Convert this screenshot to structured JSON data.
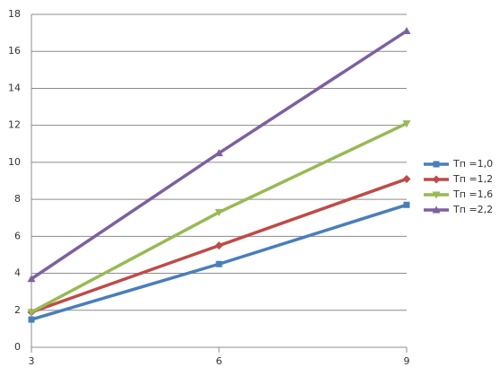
{
  "chart_data": {
    "type": "line",
    "x": [
      3,
      6,
      9
    ],
    "xlim": [
      3,
      9
    ],
    "xticks": [
      3,
      6,
      9
    ],
    "ylim": [
      0,
      18
    ],
    "yticks": [
      0,
      2,
      4,
      6,
      8,
      10,
      12,
      14,
      16,
      18
    ],
    "grid": true,
    "legend": "right",
    "series": [
      {
        "name": "Тп =1,0",
        "color": "#4a7ebb",
        "marker": "square",
        "values": [
          1.5,
          4.5,
          7.7
        ]
      },
      {
        "name": "Тп =1,2",
        "color": "#be4b48",
        "marker": "diamond",
        "values": [
          1.9,
          5.5,
          9.1
        ]
      },
      {
        "name": "Тп =1,6",
        "color": "#98b954",
        "marker": "triangle-down",
        "values": [
          1.9,
          7.3,
          12.1
        ]
      },
      {
        "name": "Тп =2,2",
        "color": "#7d60a0",
        "marker": "triangle-up",
        "values": [
          3.7,
          10.5,
          17.1
        ]
      }
    ]
  }
}
